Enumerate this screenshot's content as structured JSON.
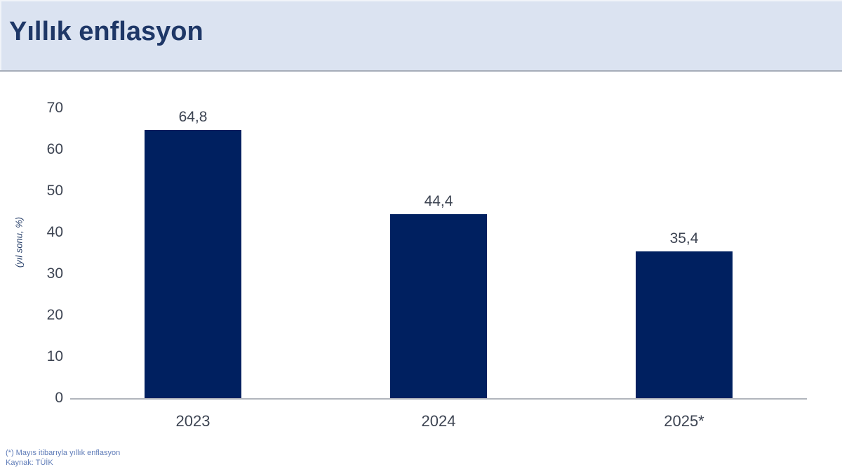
{
  "header": {
    "title": "Yıllık enflasyon"
  },
  "colors": {
    "banner_bg": "#dbe3f1",
    "banner_border": "#a6adb9",
    "title": "#1e3767",
    "bar": "#002060",
    "axis_line": "#b1b5bc",
    "labels": "#3d4452",
    "y_axis_label": "#1f3864",
    "footnote": "#5f7cb8"
  },
  "chart_data": {
    "type": "bar",
    "title": "Yıllık enflasyon",
    "xlabel": "",
    "ylabel": "(yıl sonu, %)",
    "categories": [
      "2023",
      "2024",
      "2025*"
    ],
    "values": [
      64.8,
      44.4,
      35.4
    ],
    "value_labels": [
      "64,8",
      "44,4",
      "35,4"
    ],
    "ylim": [
      0,
      70
    ],
    "yticks": [
      "0",
      "10",
      "20",
      "30",
      "40",
      "50",
      "60",
      "70"
    ],
    "grid": "off",
    "legend": "none"
  },
  "footnotes": {
    "line1": "(*) Mayıs itibarıyla yıllık enflasyon",
    "line2": "Kaynak: TÜİK"
  }
}
